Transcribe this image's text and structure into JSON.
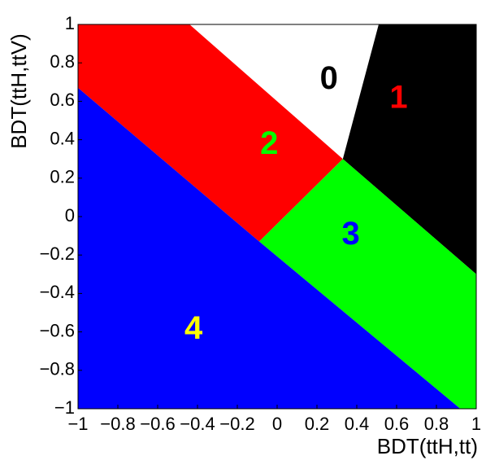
{
  "chart_data": {
    "type": "area",
    "xlabel": "BDT(ttH,tt)",
    "ylabel": "BDT(ttH,ttV)",
    "xlim": [
      -1,
      1
    ],
    "ylim": [
      -1,
      1
    ],
    "x_ticks": [
      "−1",
      "−0.8",
      "−0.6",
      "−0.4",
      "−0.2",
      "0",
      "0.2",
      "0.4",
      "0.6",
      "0.8",
      "1"
    ],
    "y_ticks": [
      "1",
      "0.8",
      "0.6",
      "0.4",
      "0.2",
      "0",
      "−0.2",
      "−0.4",
      "−0.6",
      "−0.8",
      "−1"
    ],
    "grid": false,
    "regions": [
      {
        "label": "0",
        "fill": "#ffffff",
        "label_color": "#000000",
        "polygon": [
          [
            -0.44,
            1
          ],
          [
            0.51,
            1
          ],
          [
            0.33,
            0.3
          ]
        ],
        "label_at": [
          0.26,
          0.71
        ]
      },
      {
        "label": "1",
        "fill": "#000000",
        "label_color": "#ff0000",
        "polygon": [
          [
            0.51,
            1
          ],
          [
            1,
            1
          ],
          [
            1,
            -0.3
          ],
          [
            0.33,
            0.3
          ]
        ],
        "label_at": [
          0.61,
          0.61
        ]
      },
      {
        "label": "2",
        "fill": "#ff0000",
        "label_color": "#00ff00",
        "polygon": [
          [
            -1,
            1
          ],
          [
            -0.44,
            1
          ],
          [
            0.33,
            0.3
          ],
          [
            -0.09,
            -0.13
          ],
          [
            -1,
            0.67
          ]
        ],
        "label_at": [
          -0.04,
          0.37
        ]
      },
      {
        "label": "3",
        "fill": "#00ff00",
        "label_color": "#0000ff",
        "polygon": [
          [
            0.33,
            0.3
          ],
          [
            1,
            -0.3
          ],
          [
            1,
            -1
          ],
          [
            0.92,
            -1
          ],
          [
            -0.09,
            -0.13
          ]
        ],
        "label_at": [
          0.37,
          -0.1
        ]
      },
      {
        "label": "4",
        "fill": "#0000ff",
        "label_color": "#ffff00",
        "polygon": [
          [
            -1,
            0.67
          ],
          [
            -0.09,
            -0.13
          ],
          [
            0.92,
            -1
          ],
          [
            -1,
            -1
          ]
        ],
        "label_at": [
          -0.42,
          -0.59
        ]
      }
    ]
  }
}
